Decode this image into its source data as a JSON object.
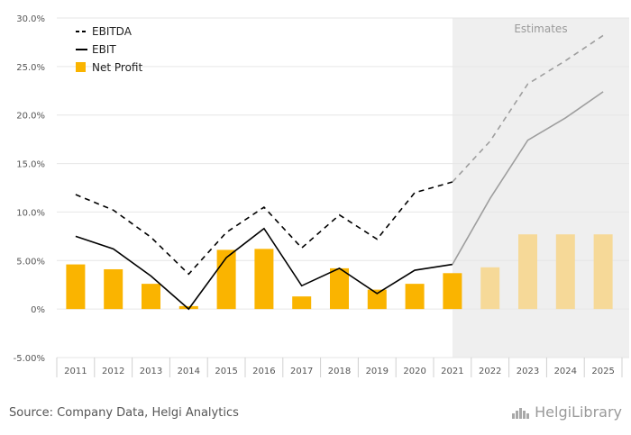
{
  "chart_data": {
    "type": "bar",
    "categories": [
      "2011",
      "2012",
      "2013",
      "2014",
      "2015",
      "2016",
      "2017",
      "2018",
      "2019",
      "2020",
      "2021",
      "2022",
      "2023",
      "2024",
      "2025"
    ],
    "series": [
      {
        "name": "EBITDA",
        "kind": "line-dashed",
        "values": [
          11.8,
          10.2,
          7.4,
          3.6,
          7.9,
          10.5,
          6.3,
          9.7,
          7.2,
          12.0,
          13.1,
          17.3,
          23.2,
          25.6,
          28.2
        ]
      },
      {
        "name": "EBIT",
        "kind": "line",
        "values": [
          7.5,
          6.2,
          3.4,
          0.0,
          5.3,
          8.3,
          2.4,
          4.2,
          1.6,
          4.0,
          4.6,
          11.4,
          17.4,
          19.7,
          22.4
        ]
      },
      {
        "name": "Net Profit",
        "kind": "bar",
        "values": [
          4.6,
          4.1,
          2.6,
          0.3,
          6.1,
          6.2,
          1.3,
          4.2,
          2.0,
          2.6,
          3.7,
          4.3,
          7.7,
          7.7,
          7.7
        ]
      }
    ],
    "estimate_from": "2022",
    "estimates_label": "Estimates",
    "ylim": [
      -5,
      30
    ],
    "yticks": [
      -5,
      0,
      5,
      10,
      15,
      20,
      25,
      30
    ],
    "ytick_labels": [
      "-5.00%",
      "0%",
      "5.00%",
      "10.0%",
      "15.0%",
      "20.0%",
      "25.0%",
      "30.0%"
    ],
    "grid": true,
    "legend_position": "top-left",
    "colors": {
      "bar": "#fab400",
      "bar_estimate": "#f6d998",
      "line": "#000000",
      "line_estimate": "#9e9e9e",
      "estimate_bg": "#efefef",
      "grid": "#e6e6e6"
    }
  },
  "footer": {
    "source": "Source: Company Data, Helgi Analytics",
    "logo_text": "HelgiLibrary",
    "logo_icon": "helgi-library-icon"
  }
}
